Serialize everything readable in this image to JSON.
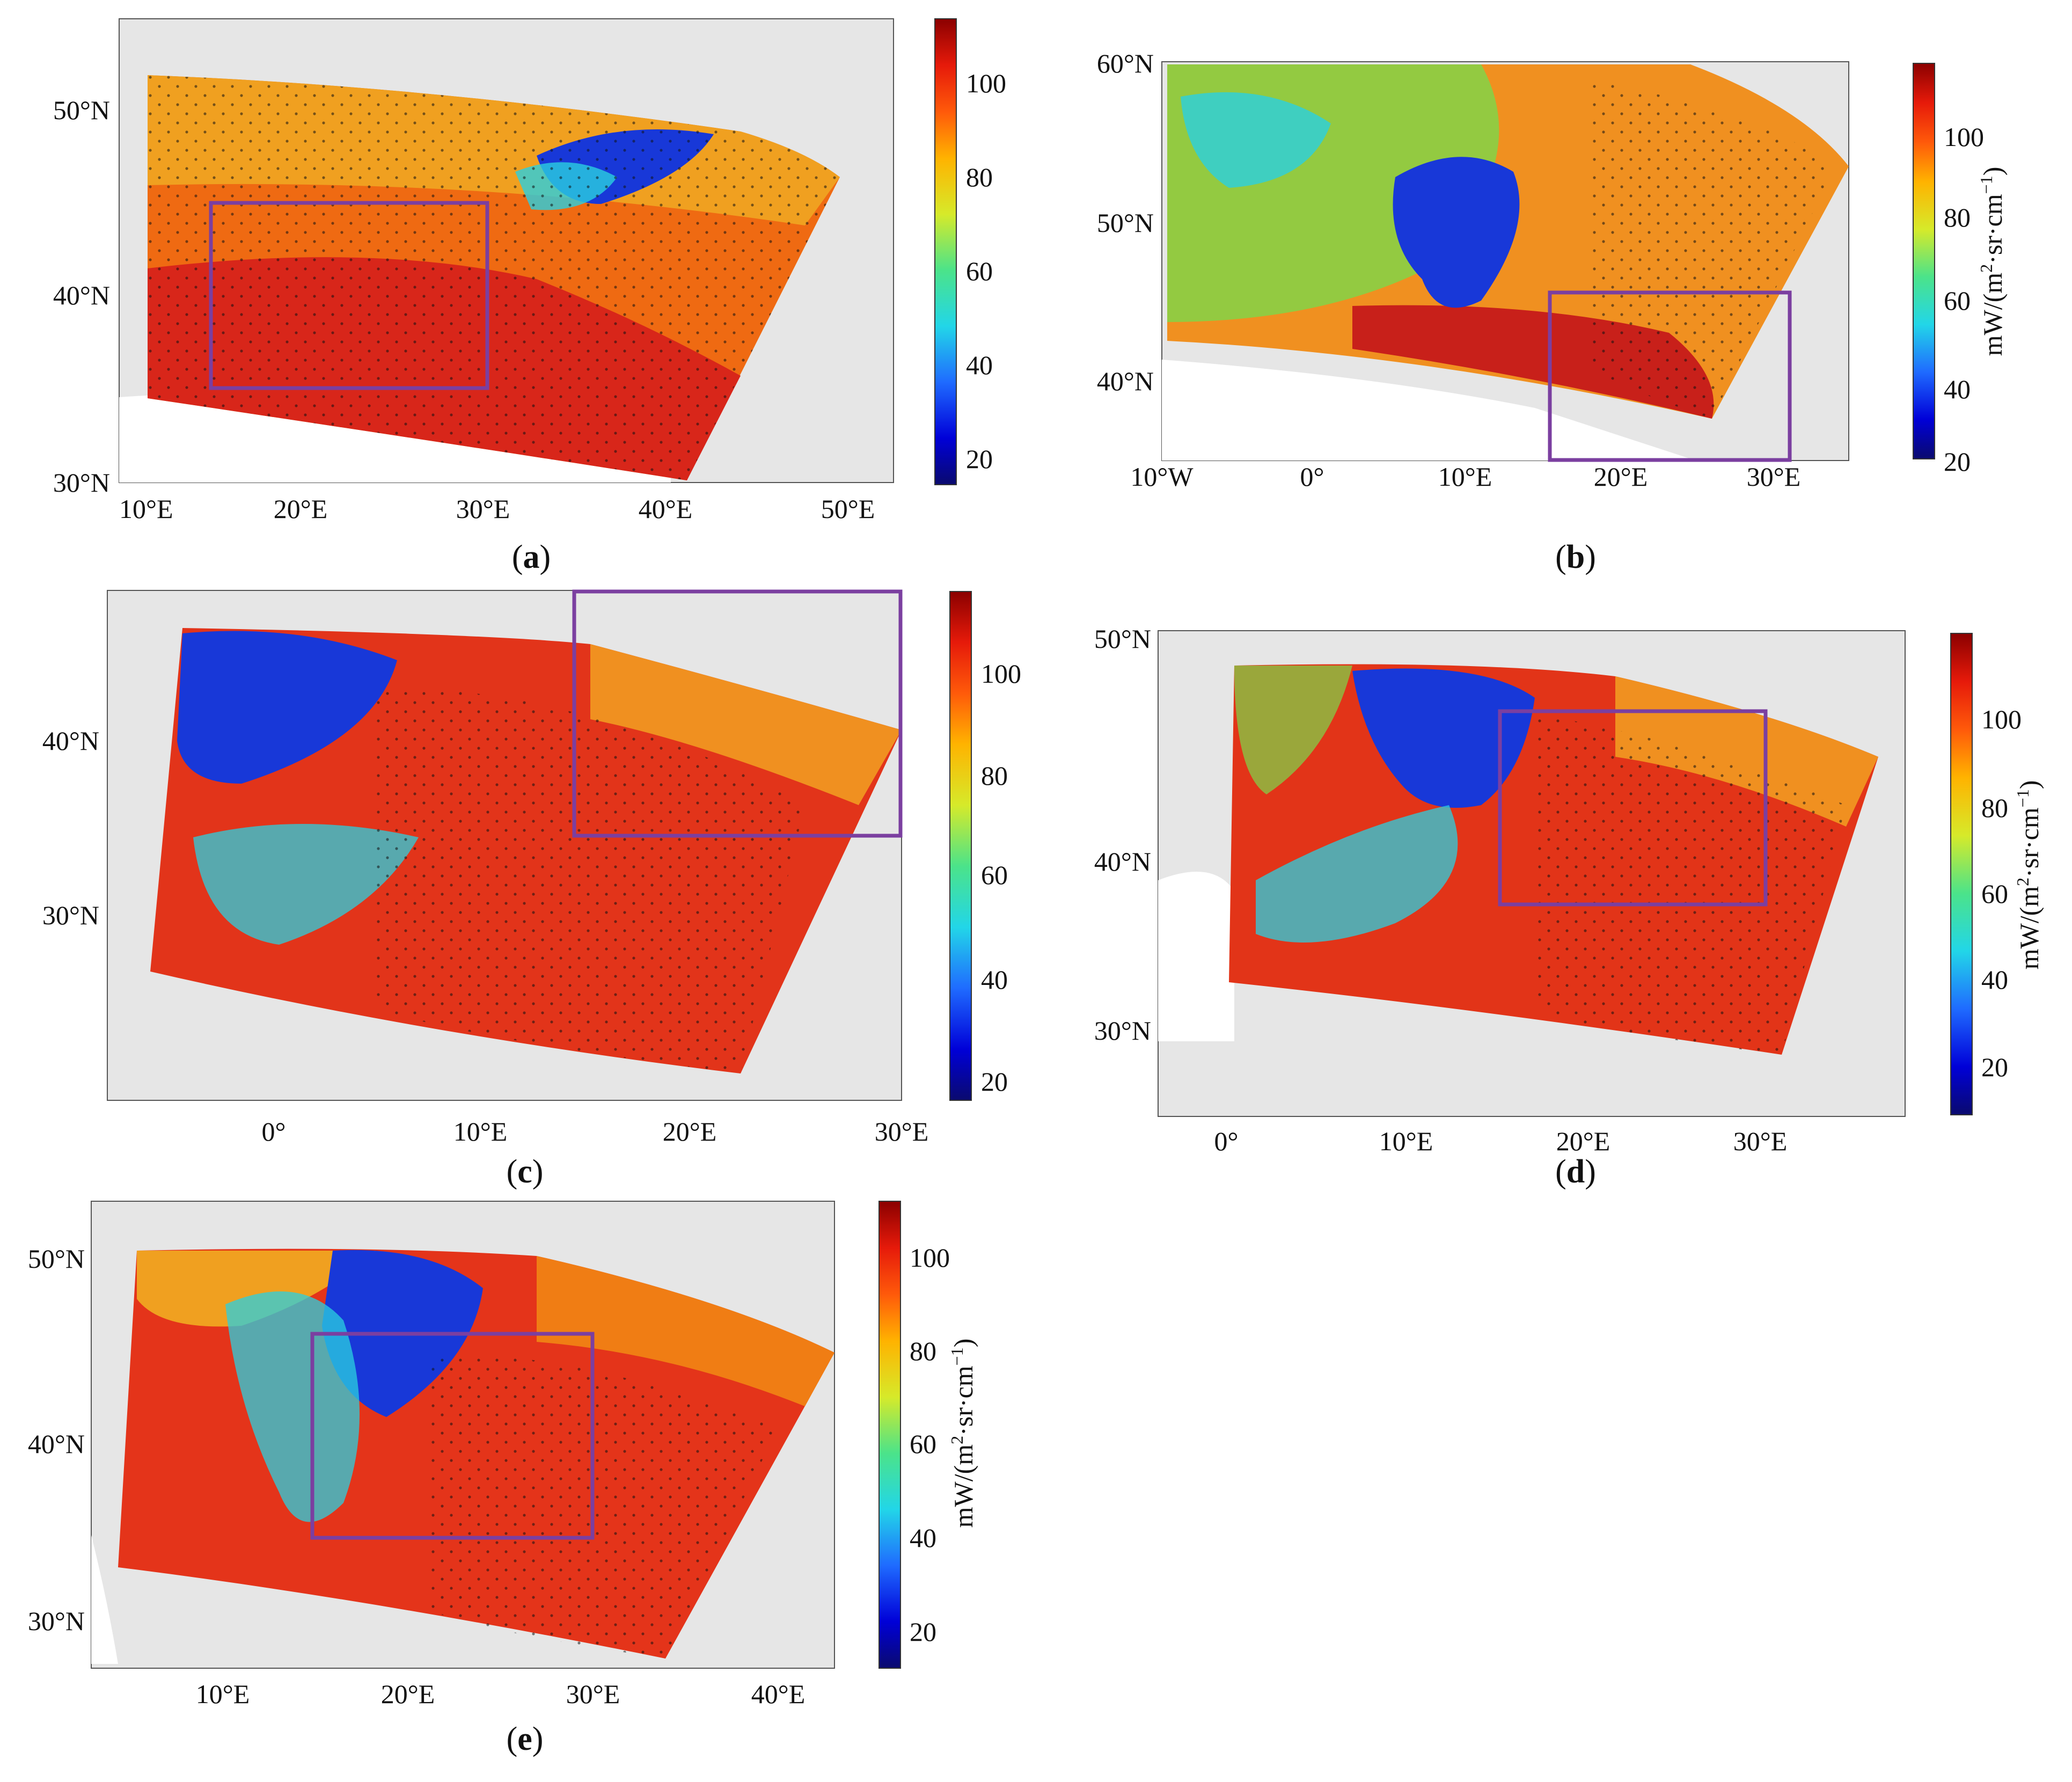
{
  "colorbar": {
    "stops": [
      "#0a0a6e",
      "#0000d8",
      "#1f6bff",
      "#22d6e8",
      "#4be38a",
      "#d6ea2a",
      "#ffb300",
      "#ff5a0a",
      "#e61a0a",
      "#8b0000"
    ],
    "unit_prefix": "mW/(m",
    "unit_sup1": "2",
    "unit_mid": "·sr·cm",
    "unit_sup2": "−1",
    "unit_suffix": ")"
  },
  "colors": {
    "land_bg": "#e6e6e6",
    "sea_bg": "#ffffff",
    "frame_box": "#7b3fa0",
    "swath_warm": "#e4321a",
    "swath_orange": "#f07d14",
    "swath_hot": "#b01010",
    "cloud_blue": "#1838d8",
    "cloud_cyan": "#2ad0e0"
  },
  "panels": [
    {
      "id": "a",
      "caption_open": "(",
      "caption_letter": "a",
      "caption_close": ")",
      "xticks": [
        "10°E",
        "20°E",
        "30°E",
        "40°E",
        "50°E"
      ],
      "yticks": [
        "30°N",
        "40°N",
        "50°N"
      ],
      "cbticks": [
        "100",
        "80",
        "60",
        "40",
        "20"
      ],
      "show_unit": false
    },
    {
      "id": "b",
      "caption_open": "(",
      "caption_letter": "b",
      "caption_close": ")",
      "xticks": [
        "10°W",
        "0°",
        "10°E",
        "20°E",
        "30°E"
      ],
      "yticks": [
        "40°N",
        "50°N",
        "60°N"
      ],
      "cbticks": [
        "100",
        "80",
        "60",
        "40",
        "20"
      ],
      "show_unit": true
    },
    {
      "id": "c",
      "caption_open": "(",
      "caption_letter": "c",
      "caption_close": ")",
      "xticks": [
        "0°",
        "10°E",
        "20°E",
        "30°E"
      ],
      "yticks": [
        "30°N",
        "40°N"
      ],
      "cbticks": [
        "100",
        "80",
        "60",
        "40",
        "20"
      ],
      "show_unit": false
    },
    {
      "id": "d",
      "caption_open": "(",
      "caption_letter": "d",
      "caption_close": ")",
      "xticks": [
        "0°",
        "10°E",
        "20°E",
        "30°E"
      ],
      "yticks": [
        "30°N",
        "40°N",
        "50°N"
      ],
      "cbticks": [
        "100",
        "80",
        "60",
        "40",
        "20"
      ],
      "show_unit": true
    },
    {
      "id": "e",
      "caption_open": "(",
      "caption_letter": "e",
      "caption_close": ")",
      "xticks": [
        "10°E",
        "20°E",
        "30°E",
        "40°E"
      ],
      "yticks": [
        "30°N",
        "40°N",
        "50°N"
      ],
      "cbticks": [
        "100",
        "80",
        "60",
        "40",
        "20"
      ],
      "show_unit": true
    }
  ]
}
